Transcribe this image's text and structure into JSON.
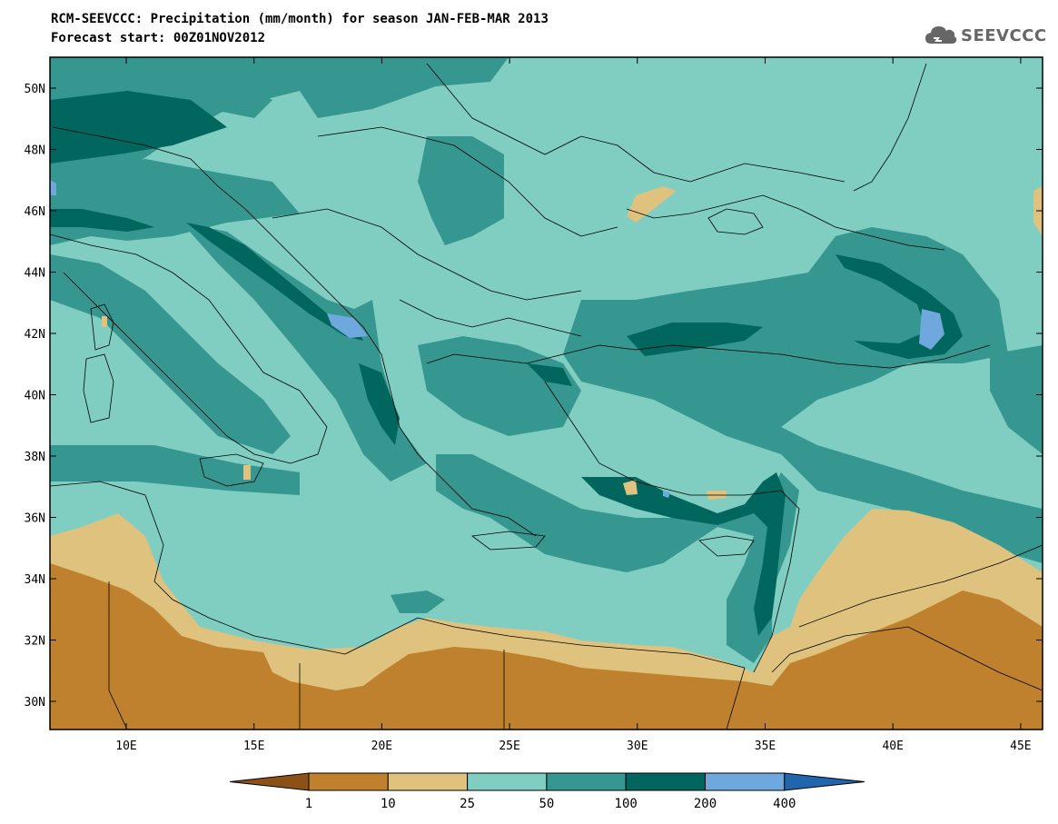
{
  "header": {
    "title_line1": "RCM-SEEVCCC: Precipitation (mm/month) for season JAN-FEB-MAR 2013",
    "title_line2": "Forecast start: 00Z01NOV2012",
    "logo_text": "SEEVCCC"
  },
  "axes": {
    "lat_labels": [
      "50N",
      "48N",
      "46N",
      "44N",
      "42N",
      "40N",
      "38N",
      "36N",
      "34N",
      "32N",
      "30N"
    ],
    "lon_labels": [
      "10E",
      "15E",
      "20E",
      "25E",
      "30E",
      "35E",
      "40E",
      "45E"
    ]
  },
  "colorbar": {
    "labels": [
      "1",
      "10",
      "25",
      "50",
      "100",
      "200",
      "400"
    ],
    "colors": [
      "#8c5116",
      "#bf812d",
      "#dfc27d",
      "#80cdc1",
      "#35978f",
      "#01665e",
      "#6fa8dc",
      "#2166ac"
    ]
  },
  "map": {
    "colors": {
      "deep_brown": "#bf812d",
      "tan": "#dfc27d",
      "light_teal": "#80cdc1",
      "mid_teal": "#35978f",
      "dark_teal": "#01665e",
      "light_blue": "#6fa8dc"
    }
  }
}
